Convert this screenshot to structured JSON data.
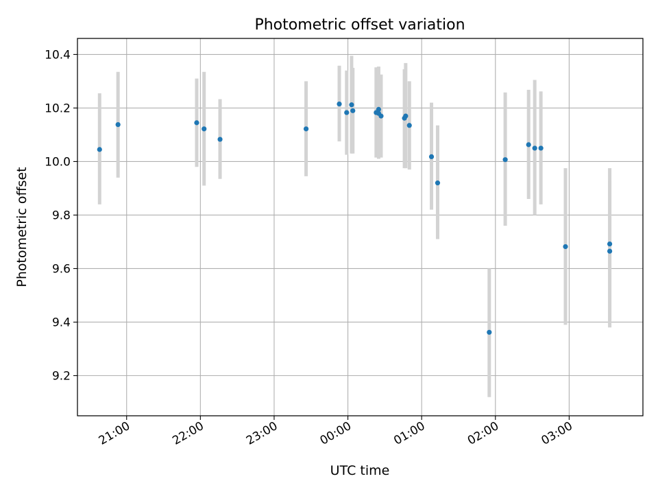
{
  "chart_data": {
    "type": "scatter",
    "title": "Photometric offset variation",
    "xlabel": "UTC time",
    "ylabel": "Photometric offset",
    "x_axis_type": "time",
    "xlim": [
      "20:20",
      "04:00"
    ],
    "ylim": [
      9.05,
      10.46
    ],
    "x_ticks": [
      "21:00",
      "22:00",
      "23:00",
      "00:00",
      "01:00",
      "02:00",
      "03:00"
    ],
    "y_ticks": [
      "9.2",
      "9.4",
      "9.6",
      "9.8",
      "10.0",
      "10.2",
      "10.4"
    ],
    "y_tick_values": [
      9.2,
      9.4,
      9.6,
      9.8,
      10.0,
      10.2,
      10.4
    ],
    "grid": true,
    "legend": false,
    "colors": {
      "point": "#1f77b4",
      "errorbar": "#d3d3d3",
      "grid": "#b0b0b0",
      "axes": "#000000"
    },
    "points": [
      {
        "t": "20:38",
        "y": 10.045,
        "lo": 9.84,
        "hi": 10.255
      },
      {
        "t": "20:53",
        "y": 10.138,
        "lo": 9.94,
        "hi": 10.335
      },
      {
        "t": "21:57",
        "y": 10.145,
        "lo": 9.98,
        "hi": 10.31
      },
      {
        "t": "22:03",
        "y": 10.122,
        "lo": 9.91,
        "hi": 10.335
      },
      {
        "t": "22:16",
        "y": 10.083,
        "lo": 9.935,
        "hi": 10.233
      },
      {
        "t": "23:26",
        "y": 10.122,
        "lo": 9.945,
        "hi": 10.3
      },
      {
        "t": "23:53",
        "y": 10.215,
        "lo": 10.075,
        "hi": 10.358
      },
      {
        "t": "23:59",
        "y": 10.183,
        "lo": 10.025,
        "hi": 10.34
      },
      {
        "t": "00:03",
        "y": 10.212,
        "lo": 10.03,
        "hi": 10.395
      },
      {
        "t": "00:04",
        "y": 10.19,
        "lo": 10.03,
        "hi": 10.35
      },
      {
        "t": "00:23",
        "y": 10.183,
        "lo": 10.015,
        "hi": 10.352
      },
      {
        "t": "00:25",
        "y": 10.18,
        "lo": 10.01,
        "hi": 10.352
      },
      {
        "t": "00:25",
        "y": 10.195,
        "lo": 10.03,
        "hi": 10.355
      },
      {
        "t": "00:27",
        "y": 10.17,
        "lo": 10.015,
        "hi": 10.325
      },
      {
        "t": "00:46",
        "y": 10.162,
        "lo": 9.975,
        "hi": 10.345
      },
      {
        "t": "00:47",
        "y": 10.17,
        "lo": 9.975,
        "hi": 10.368
      },
      {
        "t": "00:50",
        "y": 10.135,
        "lo": 9.97,
        "hi": 10.3
      },
      {
        "t": "01:08",
        "y": 10.018,
        "lo": 9.82,
        "hi": 10.22
      },
      {
        "t": "01:13",
        "y": 9.92,
        "lo": 9.71,
        "hi": 10.135
      },
      {
        "t": "01:55",
        "y": 9.362,
        "lo": 9.12,
        "hi": 9.6
      },
      {
        "t": "02:08",
        "y": 10.007,
        "lo": 9.76,
        "hi": 10.258
      },
      {
        "t": "02:27",
        "y": 10.063,
        "lo": 9.86,
        "hi": 10.268
      },
      {
        "t": "02:32",
        "y": 10.05,
        "lo": 9.8,
        "hi": 10.305
      },
      {
        "t": "02:37",
        "y": 10.05,
        "lo": 9.84,
        "hi": 10.262
      },
      {
        "t": "02:57",
        "y": 9.682,
        "lo": 9.39,
        "hi": 9.975
      },
      {
        "t": "03:33",
        "y": 9.692,
        "lo": 9.38,
        "hi": 9.975
      },
      {
        "t": "03:33",
        "y": 9.665,
        "lo": 9.41,
        "hi": 9.925
      }
    ]
  }
}
